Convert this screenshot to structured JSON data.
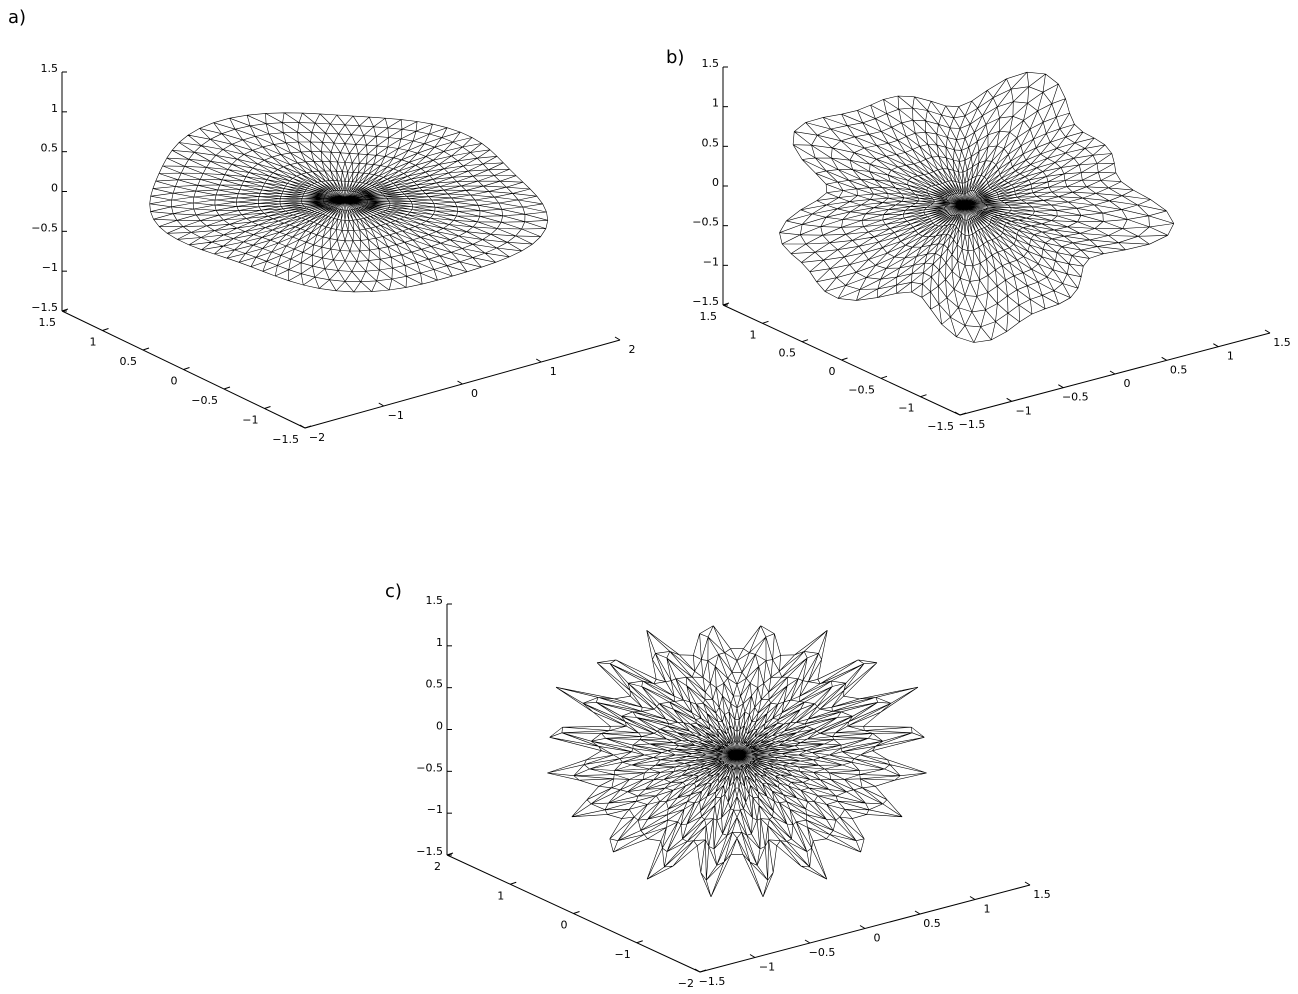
{
  "chart_data": [
    {
      "type": "mesh3d",
      "label": "a)",
      "xlim": [
        -2,
        2
      ],
      "xticks": [
        {
          "value": -2,
          "label": "−2"
        },
        {
          "value": -1,
          "label": "−1"
        },
        0,
        1,
        2
      ],
      "ylim": [
        -1.5,
        1.5
      ],
      "yticks": [
        {
          "value": -1.5,
          "label": "−1.5"
        },
        {
          "value": -1,
          "label": "−1"
        },
        {
          "value": -0.5,
          "label": "−0.5"
        },
        0,
        0.5,
        1,
        1.5
      ],
      "zlim": [
        -1.5,
        1.5
      ],
      "zticks": [
        {
          "value": -1.5,
          "label": "−1.5"
        },
        {
          "value": -1,
          "label": "−1"
        },
        {
          "value": -0.5,
          "label": "−0.5"
        },
        0,
        0.5,
        1,
        1.5
      ]
    },
    {
      "type": "mesh3d",
      "label": "b)",
      "xlim": [
        -1.5,
        1.5
      ],
      "xticks": [
        {
          "value": -1.5,
          "label": "−1.5"
        },
        {
          "value": -1,
          "label": "−1"
        },
        {
          "value": -0.5,
          "label": "−0.5"
        },
        0,
        0.5,
        1,
        1.5
      ],
      "ylim": [
        -1.5,
        1.5
      ],
      "yticks": [
        {
          "value": -1.5,
          "label": "−1.5"
        },
        {
          "value": -1,
          "label": "−1"
        },
        {
          "value": -0.5,
          "label": "−0.5"
        },
        0,
        0.5,
        1,
        1.5
      ],
      "zlim": [
        -1.5,
        1.5
      ],
      "zticks": [
        {
          "value": -1.5,
          "label": "−1.5"
        },
        {
          "value": -1,
          "label": "−1"
        },
        {
          "value": -0.5,
          "label": "−0.5"
        },
        0,
        0.5,
        1,
        1.5
      ]
    },
    {
      "type": "mesh3d",
      "label": "c)",
      "xlim": [
        -1.5,
        1.5
      ],
      "xticks": [
        {
          "value": -1.5,
          "label": "−1.5"
        },
        {
          "value": -1,
          "label": "−1"
        },
        {
          "value": -0.5,
          "label": "−0.5"
        },
        0,
        0.5,
        1,
        1.5
      ],
      "ylim": [
        -2,
        2
      ],
      "yticks": [
        {
          "value": -2,
          "label": "−2"
        },
        {
          "value": -1,
          "label": "−1"
        },
        0,
        1,
        2
      ],
      "zlim": [
        -1.5,
        1.5
      ],
      "zticks": [
        {
          "value": -1.5,
          "label": "−1.5"
        },
        {
          "value": -1,
          "label": "−1"
        },
        {
          "value": -0.5,
          "label": "−0.5"
        },
        0,
        0.5,
        1,
        1.5
      ]
    }
  ]
}
